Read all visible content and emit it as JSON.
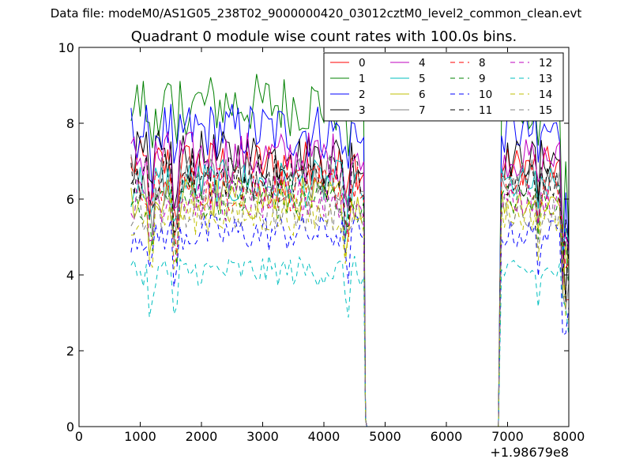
{
  "suptitle": "Data file: modeM0/AS1G05_238T02_9000000420_03012cztM0_level2_common_clean.evt",
  "chart_data": {
    "type": "line",
    "title": "Quadrant 0 module wise count rates with 100.0s bins.",
    "xlabel": "",
    "ylabel": "",
    "xlim": [
      0,
      8000
    ],
    "ylim": [
      0,
      10
    ],
    "xticks": [
      0,
      1000,
      2000,
      3000,
      4000,
      5000,
      6000,
      7000,
      8000
    ],
    "yticks": [
      0,
      2,
      4,
      6,
      8,
      10
    ],
    "x_offset_label": "+1.98679e8",
    "legend_position": "top-right",
    "legend_columns": 4,
    "x_active_1": [
      850,
      4650
    ],
    "x_gap": [
      4700,
      6850
    ],
    "x_active_2": [
      6900,
      8000
    ],
    "series": [
      {
        "name": "0",
        "color": "#ff0000",
        "dash": "solid",
        "level": 6.9
      },
      {
        "name": "1",
        "color": "#008000",
        "dash": "solid",
        "level": 8.5
      },
      {
        "name": "2",
        "color": "#0000ff",
        "dash": "solid",
        "level": 7.8
      },
      {
        "name": "3",
        "color": "#000000",
        "dash": "solid",
        "level": 7.1
      },
      {
        "name": "4",
        "color": "#bf00bf",
        "dash": "solid",
        "level": 7.1
      },
      {
        "name": "5",
        "color": "#00bfbf",
        "dash": "solid",
        "level": 6.4
      },
      {
        "name": "6",
        "color": "#bfbf00",
        "dash": "solid",
        "level": 6.0
      },
      {
        "name": "7",
        "color": "#808080",
        "dash": "solid",
        "level": 6.6
      },
      {
        "name": "8",
        "color": "#ff0000",
        "dash": "dashed",
        "level": 6.3
      },
      {
        "name": "9",
        "color": "#008000",
        "dash": "dashed",
        "level": 6.0
      },
      {
        "name": "10",
        "color": "#0000ff",
        "dash": "dashed",
        "level": 5.1
      },
      {
        "name": "11",
        "color": "#000000",
        "dash": "dashed",
        "level": 6.6
      },
      {
        "name": "12",
        "color": "#bf00bf",
        "dash": "dashed",
        "level": 6.0
      },
      {
        "name": "13",
        "color": "#00bfbf",
        "dash": "dashed",
        "level": 4.1
      },
      {
        "name": "14",
        "color": "#bfbf00",
        "dash": "dashed",
        "level": 5.6
      },
      {
        "name": "15",
        "color": "#808080",
        "dash": "dashed",
        "level": 5.7
      }
    ]
  }
}
